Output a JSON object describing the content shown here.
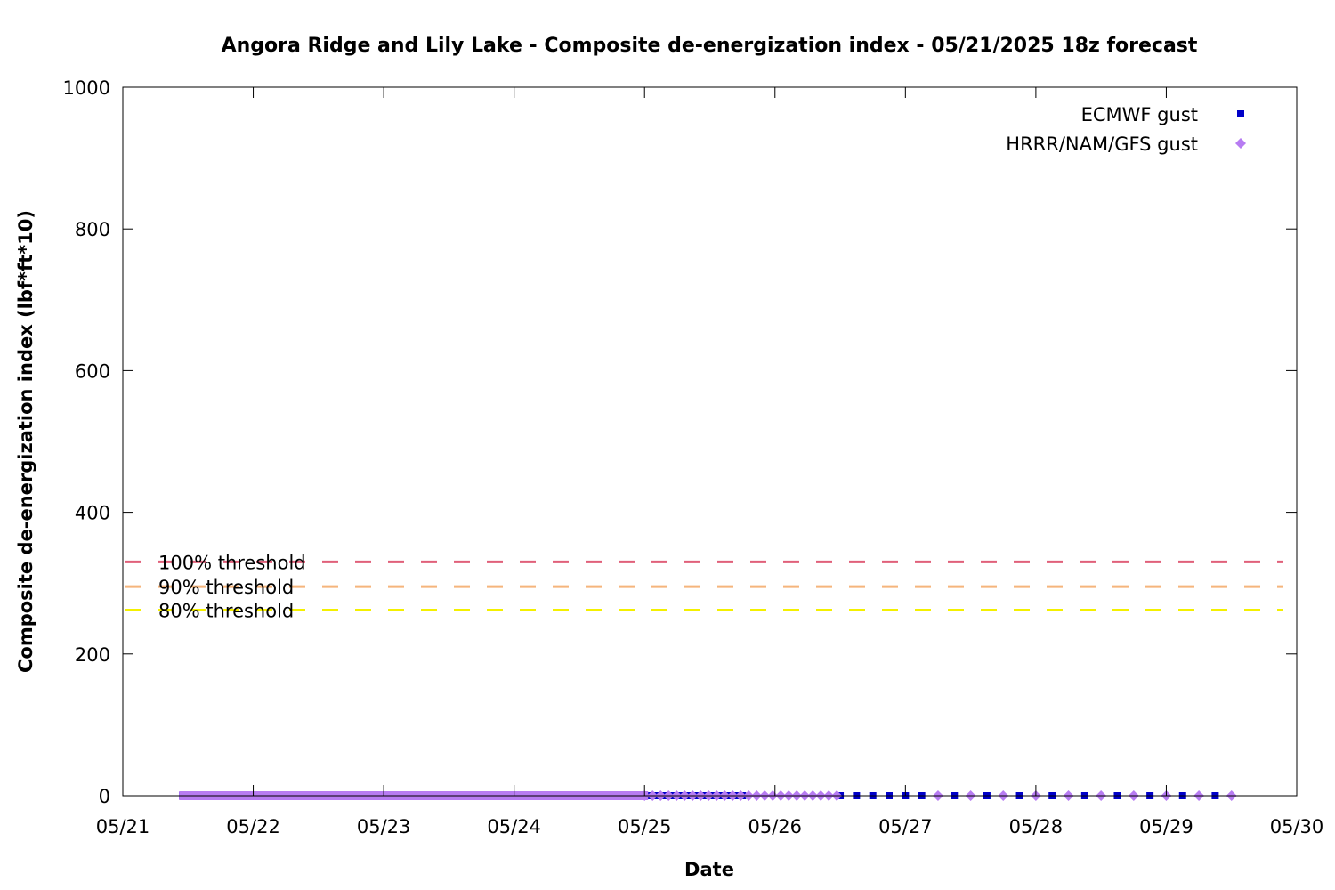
{
  "chart_data": {
    "type": "scatter",
    "title": "Angora Ridge and Lily Lake - Composite de-energization index - 05/21/2025 18z forecast",
    "xlabel": "Date",
    "ylabel": "Composite de-energization index (lbf*ft*10)",
    "x_ticks": [
      "05/21",
      "05/22",
      "05/23",
      "05/24",
      "05/25",
      "05/26",
      "05/27",
      "05/28",
      "05/29",
      "05/30"
    ],
    "xlim": [
      "2025-05-21",
      "2025-05-30"
    ],
    "y_ticks": [
      0,
      200,
      400,
      600,
      800,
      1000
    ],
    "ylim": [
      0,
      1000
    ],
    "legend_position": "top-right",
    "grid": false,
    "thresholds": [
      {
        "label": "100% threshold",
        "value": 330,
        "color": "#e0607a"
      },
      {
        "label": "90% threshold",
        "value": 295,
        "color": "#f5b57c"
      },
      {
        "label": "80% threshold",
        "value": 262,
        "color": "#f4f000"
      }
    ],
    "series": [
      {
        "name": "ECMWF gust",
        "marker": "square",
        "color": "#0000c8",
        "points": [
          {
            "x": "2025-05-21 11:00",
            "y": 0
          },
          {
            "x": "2025-05-25 18:00",
            "y": 0
          },
          {
            "x": "2025-05-26 12:00",
            "y": 0
          },
          {
            "x": "2025-05-26 15:00",
            "y": 0
          },
          {
            "x": "2025-05-26 18:00",
            "y": 0
          },
          {
            "x": "2025-05-26 21:00",
            "y": 0
          },
          {
            "x": "2025-05-27 00:00",
            "y": 0
          },
          {
            "x": "2025-05-27 03:00",
            "y": 0
          },
          {
            "x": "2025-05-27 09:00",
            "y": 0
          },
          {
            "x": "2025-05-27 15:00",
            "y": 0
          },
          {
            "x": "2025-05-27 21:00",
            "y": 0
          },
          {
            "x": "2025-05-28 03:00",
            "y": 0
          },
          {
            "x": "2025-05-28 09:00",
            "y": 0
          },
          {
            "x": "2025-05-28 15:00",
            "y": 0
          },
          {
            "x": "2025-05-28 21:00",
            "y": 0
          },
          {
            "x": "2025-05-29 03:00",
            "y": 0
          },
          {
            "x": "2025-05-29 09:00",
            "y": 0
          }
        ]
      },
      {
        "name": "HRRR/NAM/GFS gust",
        "marker": "diamond",
        "color": "#b77cf2",
        "points": [
          {
            "x": "2025-05-21 11:00",
            "y": 0
          },
          {
            "x": "2025-05-25 00:00",
            "y": 0
          },
          {
            "x": "2025-05-26 12:00",
            "y": 0
          },
          {
            "x": "2025-05-27 06:00",
            "y": 0
          },
          {
            "x": "2025-05-27 12:00",
            "y": 0
          },
          {
            "x": "2025-05-27 18:00",
            "y": 0
          },
          {
            "x": "2025-05-28 00:00",
            "y": 0
          },
          {
            "x": "2025-05-28 06:00",
            "y": 0
          },
          {
            "x": "2025-05-28 12:00",
            "y": 0
          },
          {
            "x": "2025-05-28 18:00",
            "y": 0
          },
          {
            "x": "2025-05-29 00:00",
            "y": 0
          },
          {
            "x": "2025-05-29 06:00",
            "y": 0
          },
          {
            "x": "2025-05-29 12:00",
            "y": 0
          }
        ]
      }
    ]
  }
}
